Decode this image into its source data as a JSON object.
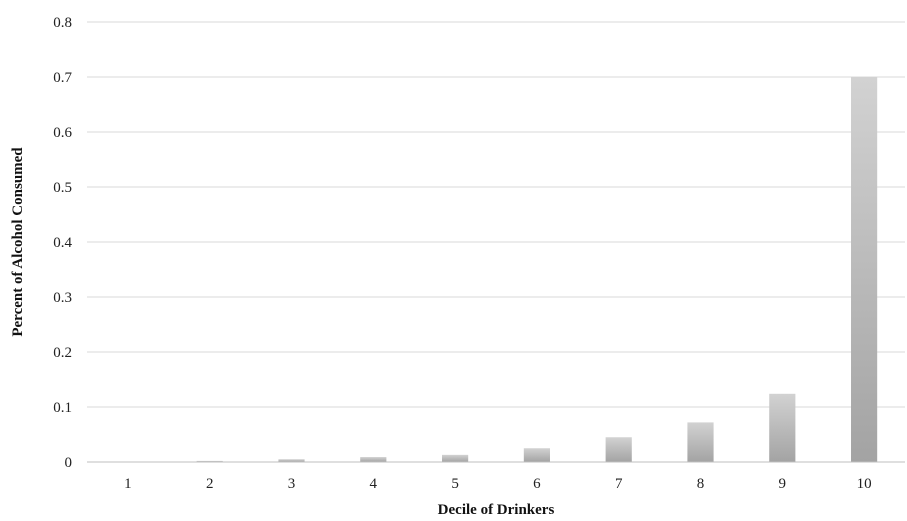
{
  "chart_data": {
    "type": "bar",
    "title": "",
    "xlabel": "Decile of Drinkers",
    "ylabel": "Percent of Alcohol Consumed",
    "categories": [
      "1",
      "2",
      "3",
      "4",
      "5",
      "6",
      "7",
      "8",
      "9",
      "10"
    ],
    "values": [
      0.0,
      0.002,
      0.005,
      0.009,
      0.013,
      0.025,
      0.045,
      0.072,
      0.124,
      0.7
    ],
    "ylim": [
      0,
      0.8
    ],
    "yticks": [
      "0",
      "0.1",
      "0.2",
      "0.3",
      "0.4",
      "0.5",
      "0.6",
      "0.7",
      "0.8"
    ],
    "grid": true,
    "legend": "none",
    "colors": {
      "bar_light": "#d2d2d2",
      "bar_dark": "#a3a3a3",
      "grid": "#d9d9d9",
      "axis": "#bfbfbf"
    }
  }
}
